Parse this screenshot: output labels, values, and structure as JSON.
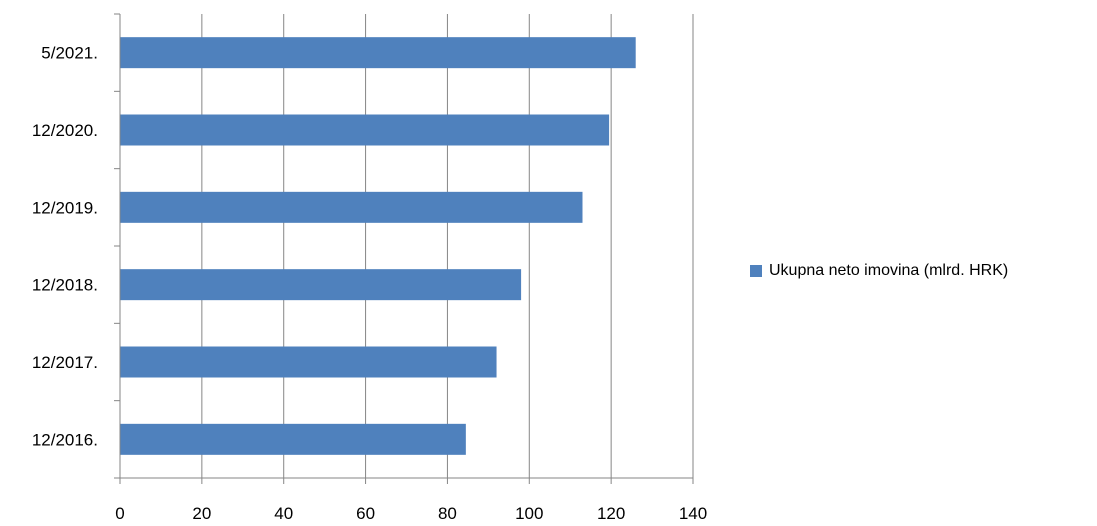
{
  "chart_data": {
    "type": "bar",
    "orientation": "horizontal",
    "categories": [
      "12/2016.",
      "12/2017.",
      "12/2018.",
      "12/2019.",
      "12/2020.",
      "5/2021."
    ],
    "series": [
      {
        "name": "Ukupna neto imovina (mlrd. HRK)",
        "values": [
          84.5,
          92,
          98,
          113,
          119.5,
          126
        ],
        "color": "#4f81bd"
      }
    ],
    "x_ticks": [
      "0",
      "20",
      "40",
      "60",
      "80",
      "100",
      "120",
      "140"
    ],
    "xlim": [
      0,
      140
    ],
    "grid": "vertical",
    "legend_position": "right"
  }
}
